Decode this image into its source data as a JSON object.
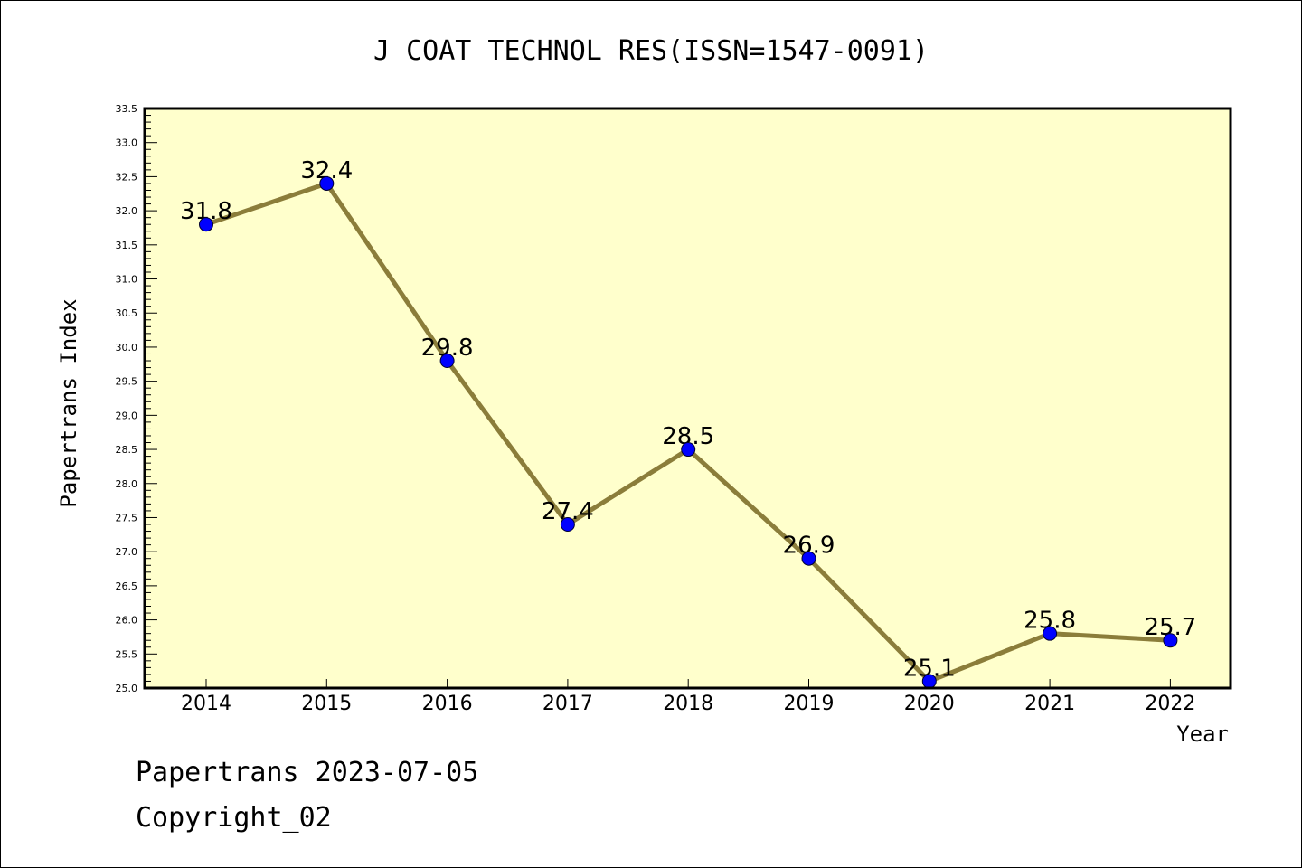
{
  "chart_data": {
    "type": "line",
    "title": "J COAT TECHNOL RES(ISSN=1547-0091)",
    "xlabel": "Year",
    "ylabel": "Papertrans Index",
    "categories": [
      "2014",
      "2015",
      "2016",
      "2017",
      "2018",
      "2019",
      "2020",
      "2021",
      "2022"
    ],
    "series": [
      {
        "values": [
          31.8,
          32.4,
          29.8,
          27.4,
          28.5,
          26.9,
          25.1,
          25.8,
          25.7
        ],
        "labels": [
          "31.8",
          "32.4",
          "29.8",
          "27.4",
          "28.5",
          "26.9",
          "25.1",
          "25.8",
          "25.7"
        ]
      }
    ],
    "yticks": [
      "25.0",
      "25.5",
      "26.0",
      "26.5",
      "27.0",
      "27.5",
      "28.0",
      "28.5",
      "29.0",
      "29.5",
      "30.0",
      "30.5",
      "31.0",
      "31.5",
      "32.0",
      "32.5",
      "33.0",
      "33.5"
    ],
    "ylim": [
      25.0,
      33.5
    ],
    "grid": false,
    "colors": {
      "plot_bg": "#ffffcc",
      "line": "#8b7d3a",
      "marker": "#0000ff"
    }
  },
  "footer": {
    "line1": "Papertrans 2023-07-05",
    "line2": "Copyright_02"
  }
}
